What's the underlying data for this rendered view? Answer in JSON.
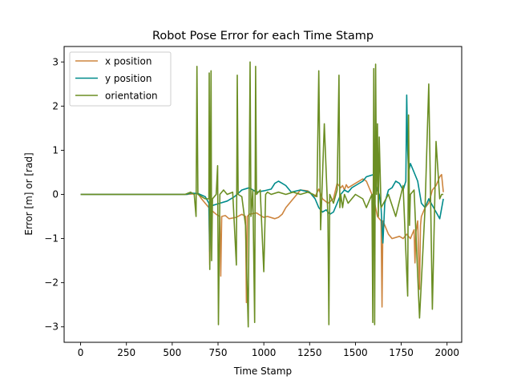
{
  "chart_data": {
    "type": "line",
    "title": "Robot Pose Error for each Time Stamp",
    "xlabel": "Time Stamp",
    "ylabel": "Error [m] or [rad]",
    "xlim": [
      -90,
      2080
    ],
    "ylim": [
      -3.35,
      3.35
    ],
    "xticks": [
      0,
      250,
      500,
      750,
      1000,
      1250,
      1500,
      1750,
      2000
    ],
    "yticks": [
      -3,
      -2,
      -1,
      0,
      1,
      2,
      3
    ],
    "ytick_labels": [
      "−3",
      "−2",
      "−1",
      "0",
      "1",
      "2",
      "3"
    ],
    "grid": false,
    "legend_position": "top-left",
    "series": [
      {
        "name": "x position",
        "color": "#cd853f",
        "x": [
          0,
          160,
          580,
          640,
          660,
          700,
          705,
          710,
          715,
          720,
          740,
          760,
          765,
          770,
          790,
          810,
          850,
          880,
          900,
          905,
          910,
          920,
          960,
          990,
          1000,
          1020,
          1060,
          1080,
          1100,
          1120,
          1200,
          1240,
          1280,
          1300,
          1320,
          1350,
          1380,
          1400,
          1420,
          1430,
          1440,
          1450,
          1460,
          1500,
          1540,
          1560,
          1580,
          1600,
          1620,
          1640,
          1645,
          1650,
          1660,
          1680,
          1700,
          1740,
          1760,
          1780,
          1800,
          1820,
          1825,
          1830,
          1840,
          1850,
          1855,
          1860,
          1880,
          1900,
          1920,
          1940,
          1960,
          1970,
          1980
        ],
        "y": [
          0,
          0,
          0,
          0.02,
          -0.1,
          -0.3,
          -1.6,
          -0.3,
          -0.4,
          -0.38,
          -0.45,
          -0.5,
          -1.85,
          -0.5,
          -0.48,
          -0.55,
          -0.52,
          -0.45,
          -0.5,
          -2.45,
          -0.5,
          -0.45,
          -0.42,
          -0.5,
          -0.52,
          -0.5,
          -0.55,
          -0.52,
          -0.45,
          -0.3,
          0.1,
          0.08,
          -0.05,
          0.12,
          -0.1,
          -0.2,
          -0.1,
          0.25,
          0.15,
          0.2,
          0.1,
          0.22,
          0.15,
          0.25,
          0.35,
          0.3,
          0.1,
          -0.1,
          -0.5,
          -0.6,
          -2.55,
          -0.6,
          -0.7,
          -0.9,
          -1.0,
          -0.95,
          -1.0,
          -0.9,
          -1.0,
          -0.8,
          -1.55,
          -0.85,
          -0.6,
          -2.15,
          -0.7,
          -0.5,
          -0.3,
          -0.2,
          0.1,
          0.2,
          0.4,
          0.45,
          0.05
        ]
      },
      {
        "name": "y position",
        "color": "#008b8b",
        "x": [
          0,
          580,
          600,
          640,
          680,
          700,
          705,
          710,
          720,
          760,
          800,
          840,
          880,
          920,
          960,
          1000,
          1040,
          1060,
          1080,
          1100,
          1120,
          1150,
          1200,
          1250,
          1280,
          1300,
          1320,
          1340,
          1360,
          1380,
          1400,
          1420,
          1440,
          1460,
          1480,
          1500,
          1540,
          1560,
          1600,
          1620,
          1630,
          1640,
          1650,
          1660,
          1680,
          1700,
          1720,
          1740,
          1760,
          1775,
          1780,
          1785,
          1790,
          1800,
          1820,
          1840,
          1860,
          1880,
          1900,
          1920,
          1940,
          1960,
          1980
        ],
        "y": [
          0,
          0,
          0.03,
          0.02,
          -0.05,
          -0.2,
          -1.3,
          -0.3,
          -0.25,
          -0.2,
          -0.15,
          -0.05,
          0.1,
          0.15,
          0.05,
          0.08,
          0.12,
          0.25,
          0.3,
          0.25,
          0.2,
          0.05,
          0.1,
          0.05,
          -0.1,
          -0.3,
          -0.4,
          -0.35,
          -0.45,
          -0.4,
          -0.2,
          0.0,
          0.1,
          0.05,
          0.15,
          0.2,
          0.3,
          0.4,
          0.45,
          0.1,
          0.0,
          -0.3,
          -1.1,
          -0.2,
          0.1,
          0.15,
          0.3,
          0.25,
          0.1,
          0.3,
          2.25,
          1.0,
          0.5,
          0.7,
          0.5,
          0.3,
          -0.2,
          -0.3,
          -0.1,
          -0.25,
          -0.4,
          -0.55,
          -0.1
        ]
      },
      {
        "name": "orientation",
        "color": "#6b8e23",
        "x": [
          0,
          570,
          600,
          620,
          630,
          635,
          640,
          680,
          700,
          702,
          705,
          712,
          715,
          720,
          740,
          748,
          752,
          760,
          780,
          800,
          830,
          850,
          855,
          860,
          880,
          900,
          915,
          925,
          930,
          940,
          950,
          955,
          960,
          980,
          1000,
          1010,
          1020,
          1040,
          1080,
          1120,
          1160,
          1200,
          1240,
          1270,
          1290,
          1300,
          1310,
          1330,
          1350,
          1355,
          1360,
          1380,
          1400,
          1410,
          1415,
          1420,
          1430,
          1440,
          1460,
          1500,
          1540,
          1560,
          1590,
          1595,
          1600,
          1605,
          1610,
          1615,
          1620,
          1625,
          1630,
          1640,
          1680,
          1720,
          1760,
          1785,
          1790,
          1795,
          1800,
          1820,
          1850,
          1880,
          1900,
          1920,
          1940,
          1960,
          1970,
          1980
        ],
        "y": [
          0,
          0,
          0.05,
          0.0,
          -0.5,
          2.9,
          0.0,
          -0.1,
          -0.1,
          2.75,
          -1.7,
          2.8,
          -1.5,
          -0.1,
          0.0,
          0.65,
          -2.95,
          0.0,
          0.1,
          0.0,
          0.05,
          -1.6,
          2.7,
          0.0,
          -0.05,
          -0.7,
          -3.0,
          3.0,
          -0.5,
          0.1,
          -2.9,
          2.9,
          0.0,
          0.1,
          -1.75,
          0.0,
          0.05,
          0.0,
          0.05,
          0.0,
          0.05,
          0.0,
          0.05,
          0.0,
          -0.05,
          2.8,
          -0.8,
          1.6,
          -0.5,
          -2.95,
          0.0,
          -0.2,
          0.1,
          2.7,
          -0.3,
          0.0,
          -0.3,
          0.0,
          -0.2,
          0.0,
          -0.1,
          -0.3,
          0.0,
          -2.9,
          2.85,
          -2.95,
          2.95,
          0.0,
          1.6,
          -0.5,
          1.3,
          -0.3,
          0.0,
          -0.5,
          0.2,
          -2.3,
          1.8,
          -0.7,
          0.0,
          0.1,
          -2.8,
          -0.3,
          2.5,
          -2.6,
          1.2,
          -0.1,
          0.0,
          0.0
        ]
      }
    ]
  }
}
